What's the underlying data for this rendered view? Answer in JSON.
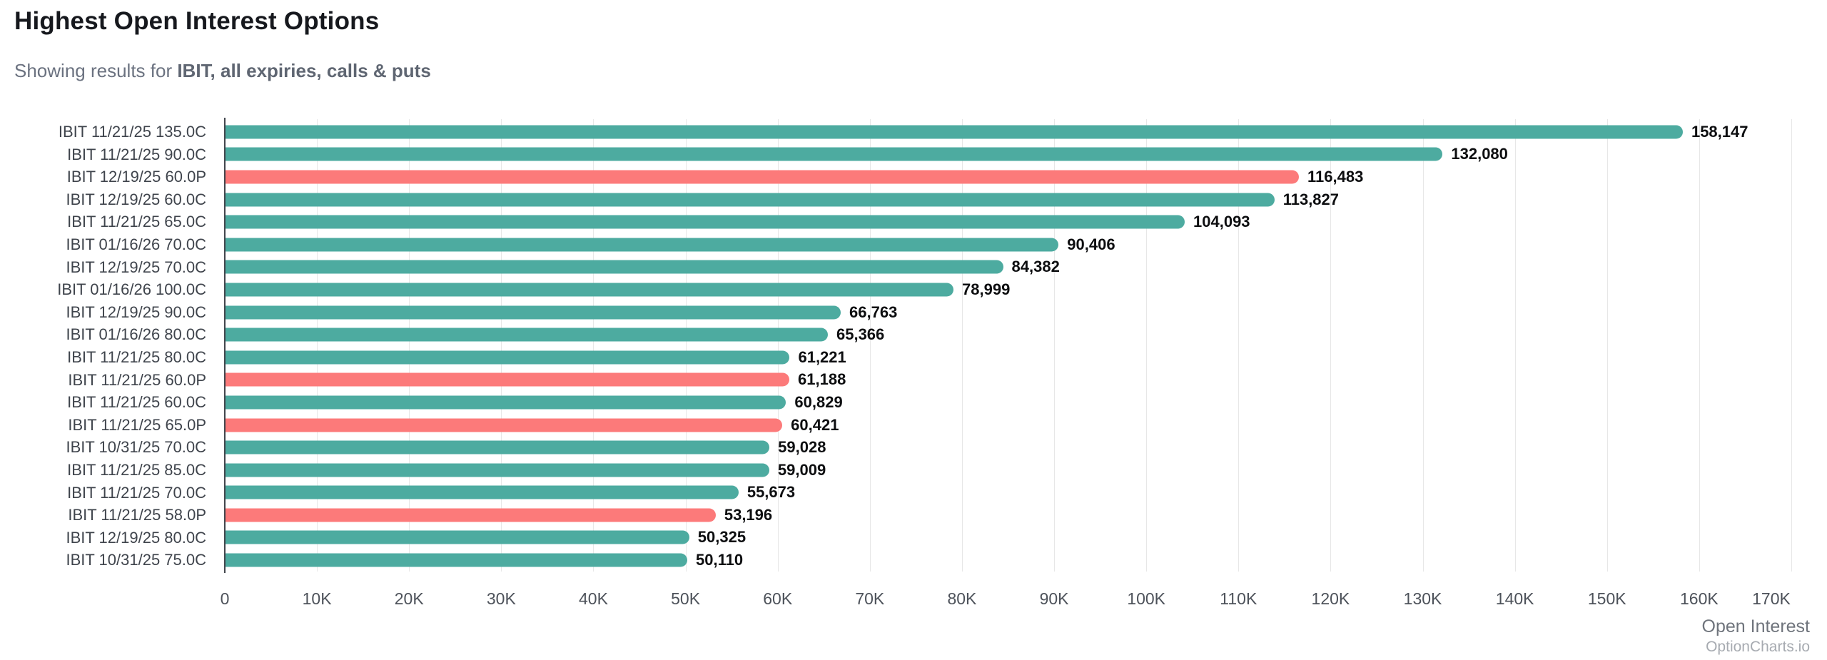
{
  "header": {
    "title": "Highest Open Interest Options",
    "subtitle_prefix": "Showing results for ",
    "subtitle_query": "IBIT, all expiries, calls & puts"
  },
  "footer": {
    "axis_title": "Open Interest",
    "watermark": "OptionCharts.io"
  },
  "colors": {
    "call": "#4daba0",
    "put": "#fc7a7a",
    "axis_line": "#42464d",
    "gridline": "#e7e7e7",
    "value_label": "#0d0e10",
    "category_label": "#3f444c"
  },
  "chart_data": {
    "type": "bar",
    "orientation": "horizontal",
    "title": "Highest Open Interest Options",
    "xlabel": "Open Interest",
    "ylabel": "",
    "xlim": [
      0,
      170000
    ],
    "grid": true,
    "ticks": [
      {
        "value": 0,
        "label": "0"
      },
      {
        "value": 10000,
        "label": "10K"
      },
      {
        "value": 20000,
        "label": "20K"
      },
      {
        "value": 30000,
        "label": "30K"
      },
      {
        "value": 40000,
        "label": "40K"
      },
      {
        "value": 50000,
        "label": "50K"
      },
      {
        "value": 60000,
        "label": "60K"
      },
      {
        "value": 70000,
        "label": "70K"
      },
      {
        "value": 80000,
        "label": "80K"
      },
      {
        "value": 90000,
        "label": "90K"
      },
      {
        "value": 100000,
        "label": "100K"
      },
      {
        "value": 110000,
        "label": "110K"
      },
      {
        "value": 120000,
        "label": "120K"
      },
      {
        "value": 130000,
        "label": "130K"
      },
      {
        "value": 140000,
        "label": "140K"
      },
      {
        "value": 150000,
        "label": "150K"
      },
      {
        "value": 160000,
        "label": "160K"
      },
      {
        "value": 170000,
        "label": "170K"
      }
    ],
    "categories": [
      "IBIT 11/21/25 135.0C",
      "IBIT 11/21/25 90.0C",
      "IBIT 12/19/25 60.0P",
      "IBIT 12/19/25 60.0C",
      "IBIT 11/21/25 65.0C",
      "IBIT 01/16/26 70.0C",
      "IBIT 12/19/25 70.0C",
      "IBIT 01/16/26 100.0C",
      "IBIT 12/19/25 90.0C",
      "IBIT 01/16/26 80.0C",
      "IBIT 11/21/25 80.0C",
      "IBIT 11/21/25 60.0P",
      "IBIT 11/21/25 60.0C",
      "IBIT 11/21/25 65.0P",
      "IBIT 10/31/25 70.0C",
      "IBIT 11/21/25 85.0C",
      "IBIT 11/21/25 70.0C",
      "IBIT 11/21/25 58.0P",
      "IBIT 12/19/25 80.0C",
      "IBIT 10/31/25 75.0C"
    ],
    "values": [
      158147,
      132080,
      116483,
      113827,
      104093,
      90406,
      84382,
      78999,
      66763,
      65366,
      61221,
      61188,
      60829,
      60421,
      59028,
      59009,
      55673,
      53196,
      50325,
      50110
    ],
    "display_values": [
      "158,147",
      "132,080",
      "116,483",
      "113,827",
      "104,093",
      "90,406",
      "84,382",
      "78,999",
      "66,763",
      "65,366",
      "61,221",
      "61,188",
      "60,829",
      "60,421",
      "59,028",
      "59,009",
      "55,673",
      "53,196",
      "50,325",
      "50,110"
    ],
    "types": [
      "call",
      "call",
      "put",
      "call",
      "call",
      "call",
      "call",
      "call",
      "call",
      "call",
      "call",
      "put",
      "call",
      "put",
      "call",
      "call",
      "call",
      "put",
      "call",
      "call"
    ],
    "legend": null
  }
}
